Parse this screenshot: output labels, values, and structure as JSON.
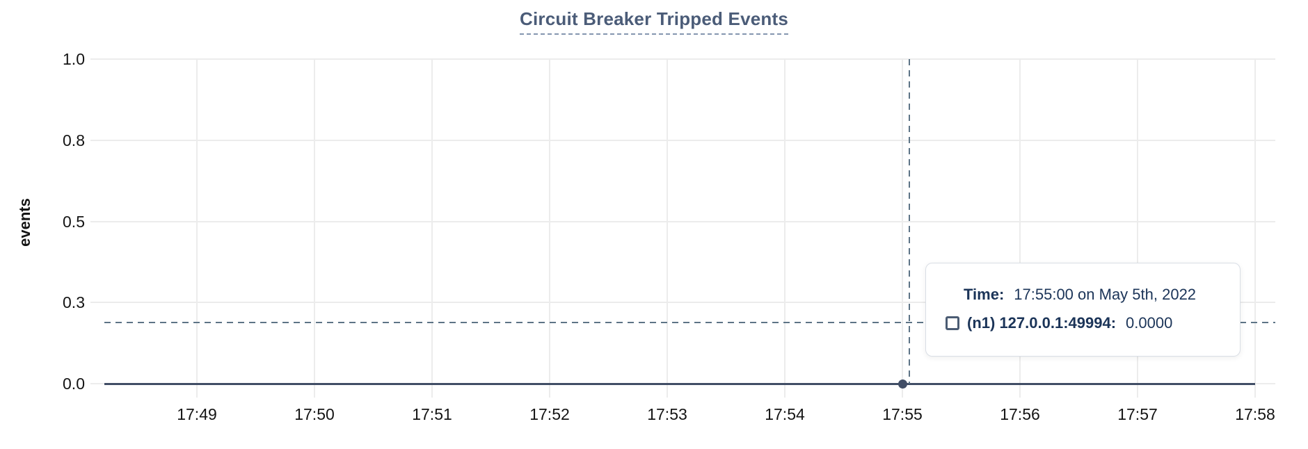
{
  "title": "Circuit Breaker Tripped Events",
  "y_axis": {
    "label": "events",
    "ticks": [
      "1.0",
      "0.8",
      "0.5",
      "0.3",
      "0.0"
    ]
  },
  "x_axis": {
    "ticks": [
      "17:49",
      "17:50",
      "17:51",
      "17:52",
      "17:53",
      "17:54",
      "17:55",
      "17:56",
      "17:57",
      "17:58"
    ]
  },
  "tooltip": {
    "time_label": "Time:",
    "time_value": "17:55:00 on May 5th, 2022",
    "series_marker": "square-outline",
    "series_label": "(n1) 127.0.0.1:49994:",
    "series_value": "0.0000"
  },
  "cursor": {
    "time": "17:55",
    "value": "0.0000"
  },
  "colors": {
    "title": "#4b5c78",
    "title_underline": "#8495af",
    "axis_text": "#141414",
    "grid": "#ececec",
    "series": "#414e66",
    "crosshair": "#5d7486",
    "tooltip_text": "#1b3458",
    "tooltip_border": "#d9dee5",
    "marker_border": "#4b5c73"
  },
  "chart_data": {
    "type": "line",
    "title": "Circuit Breaker Tripped Events",
    "xlabel": "",
    "ylabel": "events",
    "ylim": [
      0,
      1
    ],
    "yticks": [
      0,
      0.25,
      0.5,
      0.75,
      1.0
    ],
    "ytick_labels": [
      "0.0",
      "0.3",
      "0.5",
      "0.8",
      "1.0"
    ],
    "x": [
      "17:49",
      "17:50",
      "17:51",
      "17:52",
      "17:53",
      "17:54",
      "17:55",
      "17:56",
      "17:57",
      "17:58"
    ],
    "series": [
      {
        "name": "(n1) 127.0.0.1:49994",
        "values": [
          0,
          0,
          0,
          0,
          0,
          0,
          0,
          0,
          0,
          0
        ]
      }
    ],
    "grid": true,
    "legend_position": "tooltip",
    "cursor_point": {
      "x": "17:55",
      "y": 0.0
    },
    "annotations": [
      "crosshair at 17:55"
    ]
  }
}
